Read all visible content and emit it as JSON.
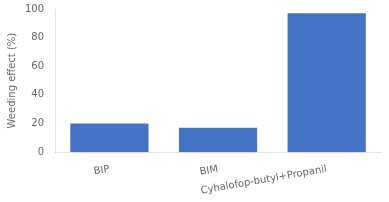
{
  "chart_data": {
    "type": "bar",
    "categories": [
      "BIP",
      "BIM",
      "Cyhalofop-butyl+Propanil"
    ],
    "values": [
      20.0,
      17.0,
      97.0
    ],
    "color": "#4472C4",
    "ylabel": "Weeding effect (%)",
    "ylim": [
      0,
      100
    ],
    "yticks": [
      0,
      20,
      40,
      60,
      80,
      100
    ],
    "grid": false
  }
}
